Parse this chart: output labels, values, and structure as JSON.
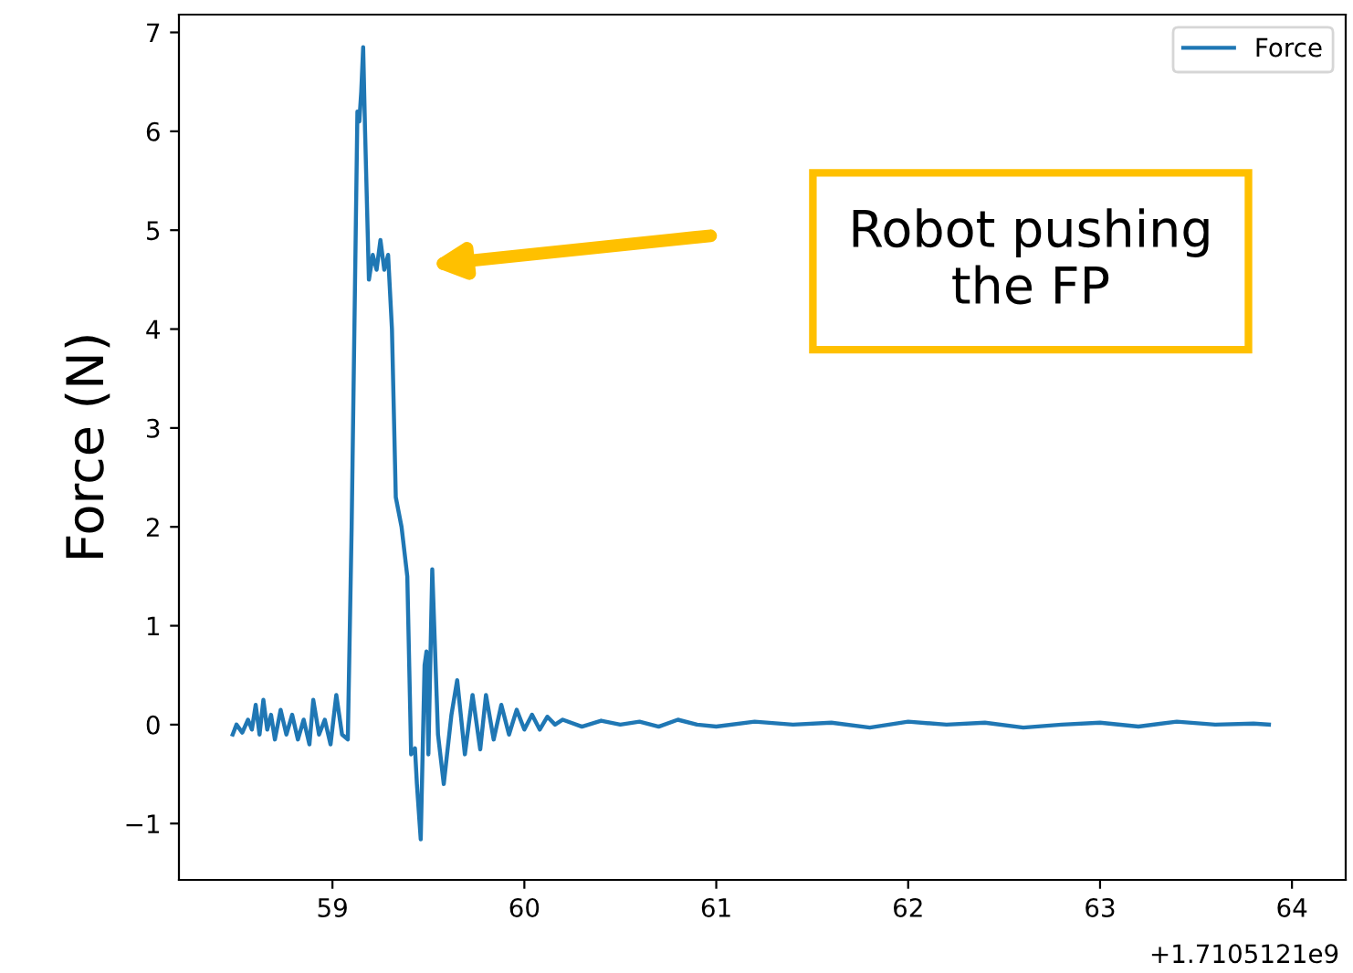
{
  "chart_data": {
    "type": "line",
    "ylabel": "Force (N)",
    "legend": "top right",
    "grid": false,
    "xlim": [
      58.2,
      64.28
    ],
    "ylim": [
      -1.57,
      7.18
    ],
    "xticks": [
      59,
      60,
      61,
      62,
      63,
      64
    ],
    "yticks": [
      {
        "value": -1,
        "label": "−1"
      },
      0,
      1,
      2,
      3,
      4,
      5,
      6,
      7
    ],
    "annotations": [
      "+1.7105121e9",
      "Robot pushing\nthe FP"
    ],
    "series": [
      {
        "name": "Force",
        "color": "#1f77b4",
        "x": [
          58.48,
          58.5,
          58.53,
          58.56,
          58.58,
          58.6,
          58.62,
          58.64,
          58.66,
          58.68,
          58.7,
          58.73,
          58.76,
          58.79,
          58.82,
          58.85,
          58.88,
          58.9,
          58.93,
          58.96,
          58.99,
          59.02,
          59.05,
          59.08,
          59.1,
          59.13,
          59.14,
          59.15,
          59.16,
          59.17,
          59.19,
          59.21,
          59.23,
          59.25,
          59.27,
          59.29,
          59.31,
          59.33,
          59.36,
          59.39,
          59.41,
          59.43,
          59.44,
          59.46,
          59.48,
          59.49,
          59.5,
          59.52,
          59.55,
          59.58,
          59.62,
          59.65,
          59.69,
          59.73,
          59.77,
          59.8,
          59.84,
          59.88,
          59.92,
          59.96,
          60.0,
          60.04,
          60.08,
          60.12,
          60.16,
          60.2,
          60.3,
          60.4,
          60.5,
          60.6,
          60.7,
          60.8,
          60.9,
          61.0,
          61.2,
          61.4,
          61.6,
          61.8,
          62.0,
          62.2,
          62.4,
          62.6,
          62.8,
          63.0,
          63.2,
          63.4,
          63.6,
          63.8,
          63.88
        ],
        "values": [
          -0.1,
          0.0,
          -0.08,
          0.05,
          -0.05,
          0.2,
          -0.1,
          0.25,
          -0.05,
          0.1,
          -0.15,
          0.15,
          -0.1,
          0.1,
          -0.15,
          0.05,
          -0.2,
          0.25,
          -0.1,
          0.05,
          -0.2,
          0.3,
          -0.1,
          -0.15,
          2.0,
          6.2,
          6.1,
          6.4,
          6.85,
          6.0,
          4.5,
          4.75,
          4.6,
          4.9,
          4.6,
          4.75,
          4.0,
          2.3,
          2.0,
          1.5,
          -0.3,
          -0.24,
          -0.6,
          -1.16,
          0.6,
          0.74,
          -0.3,
          1.57,
          -0.1,
          -0.6,
          0.1,
          0.45,
          -0.3,
          0.3,
          -0.25,
          0.3,
          -0.15,
          0.2,
          -0.1,
          0.15,
          -0.05,
          0.1,
          -0.05,
          0.08,
          0.0,
          0.05,
          -0.02,
          0.04,
          0.0,
          0.03,
          -0.02,
          0.05,
          0.0,
          -0.02,
          0.03,
          0.0,
          0.02,
          -0.03,
          0.03,
          0.0,
          0.02,
          -0.03,
          0.0,
          0.02,
          -0.02,
          0.03,
          0.0,
          0.01,
          0.0
        ]
      }
    ]
  }
}
